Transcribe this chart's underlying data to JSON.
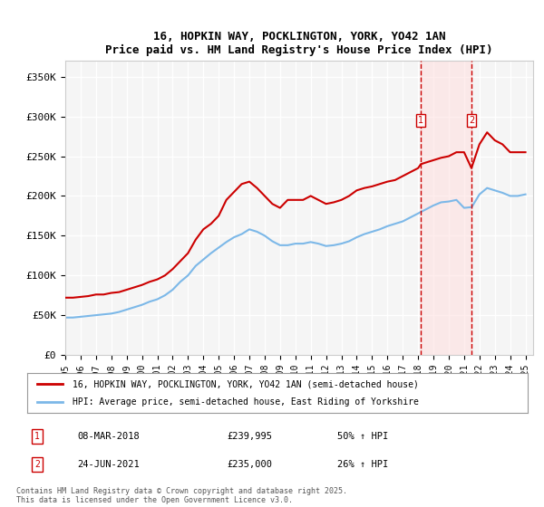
{
  "title": "16, HOPKIN WAY, POCKLINGTON, YORK, YO42 1AN",
  "subtitle": "Price paid vs. HM Land Registry's House Price Index (HPI)",
  "ylabel_ticks": [
    "£0",
    "£50K",
    "£100K",
    "£150K",
    "£200K",
    "£250K",
    "£300K",
    "£350K"
  ],
  "ytick_values": [
    0,
    50000,
    100000,
    150000,
    200000,
    250000,
    300000,
    350000
  ],
  "ylim": [
    0,
    370000
  ],
  "xlim_start": 1995.0,
  "xlim_end": 2025.5,
  "background_color": "#ffffff",
  "plot_bg_color": "#f5f5f5",
  "grid_color": "#ffffff",
  "legend_entries": [
    "16, HOPKIN WAY, POCKLINGTON, YORK, YO42 1AN (semi-detached house)",
    "HPI: Average price, semi-detached house, East Riding of Yorkshire"
  ],
  "legend_colors": [
    "#cc0000",
    "#7cb8e8"
  ],
  "transactions": [
    {
      "num": 1,
      "date": "08-MAR-2018",
      "price": "£239,995",
      "change": "50% ↑ HPI",
      "year": 2018.18
    },
    {
      "num": 2,
      "date": "24-JUN-2021",
      "price": "£235,000",
      "change": "26% ↑ HPI",
      "year": 2021.48
    }
  ],
  "vline_color": "#cc0000",
  "vline_shade_color": "#ffdddd",
  "footnote": "Contains HM Land Registry data © Crown copyright and database right 2025.\nThis data is licensed under the Open Government Licence v3.0.",
  "red_line_data": {
    "x": [
      1995.0,
      1995.5,
      1996.0,
      1996.5,
      1997.0,
      1997.5,
      1998.0,
      1998.5,
      1999.0,
      1999.5,
      2000.0,
      2000.5,
      2001.0,
      2001.5,
      2002.0,
      2002.5,
      2003.0,
      2003.5,
      2004.0,
      2004.5,
      2005.0,
      2005.5,
      2006.0,
      2006.5,
      2007.0,
      2007.5,
      2008.0,
      2008.5,
      2009.0,
      2009.5,
      2010.0,
      2010.5,
      2011.0,
      2011.5,
      2012.0,
      2012.5,
      2013.0,
      2013.5,
      2014.0,
      2014.5,
      2015.0,
      2015.5,
      2016.0,
      2016.5,
      2017.0,
      2017.5,
      2018.0,
      2018.18,
      2018.5,
      2019.0,
      2019.5,
      2020.0,
      2020.5,
      2021.0,
      2021.48,
      2022.0,
      2022.5,
      2023.0,
      2023.5,
      2024.0,
      2024.5,
      2025.0
    ],
    "y": [
      72000,
      72000,
      73000,
      74000,
      76000,
      76000,
      78000,
      79000,
      82000,
      85000,
      88000,
      92000,
      95000,
      100000,
      108000,
      118000,
      128000,
      145000,
      158000,
      165000,
      175000,
      195000,
      205000,
      215000,
      218000,
      210000,
      200000,
      190000,
      185000,
      195000,
      195000,
      195000,
      200000,
      195000,
      190000,
      192000,
      195000,
      200000,
      207000,
      210000,
      212000,
      215000,
      218000,
      220000,
      225000,
      230000,
      235000,
      239995,
      242000,
      245000,
      248000,
      250000,
      255000,
      255000,
      235000,
      265000,
      280000,
      270000,
      265000,
      255000,
      255000,
      255000
    ]
  },
  "blue_line_data": {
    "x": [
      1995.0,
      1995.5,
      1996.0,
      1996.5,
      1997.0,
      1997.5,
      1998.0,
      1998.5,
      1999.0,
      1999.5,
      2000.0,
      2000.5,
      2001.0,
      2001.5,
      2002.0,
      2002.5,
      2003.0,
      2003.5,
      2004.0,
      2004.5,
      2005.0,
      2005.5,
      2006.0,
      2006.5,
      2007.0,
      2007.5,
      2008.0,
      2008.5,
      2009.0,
      2009.5,
      2010.0,
      2010.5,
      2011.0,
      2011.5,
      2012.0,
      2012.5,
      2013.0,
      2013.5,
      2014.0,
      2014.5,
      2015.0,
      2015.5,
      2016.0,
      2016.5,
      2017.0,
      2017.5,
      2018.0,
      2018.5,
      2019.0,
      2019.5,
      2020.0,
      2020.5,
      2021.0,
      2021.5,
      2022.0,
      2022.5,
      2023.0,
      2023.5,
      2024.0,
      2024.5,
      2025.0
    ],
    "y": [
      47000,
      47000,
      48000,
      49000,
      50000,
      51000,
      52000,
      54000,
      57000,
      60000,
      63000,
      67000,
      70000,
      75000,
      82000,
      92000,
      100000,
      112000,
      120000,
      128000,
      135000,
      142000,
      148000,
      152000,
      158000,
      155000,
      150000,
      143000,
      138000,
      138000,
      140000,
      140000,
      142000,
      140000,
      137000,
      138000,
      140000,
      143000,
      148000,
      152000,
      155000,
      158000,
      162000,
      165000,
      168000,
      173000,
      178000,
      183000,
      188000,
      192000,
      193000,
      195000,
      185000,
      186000,
      202000,
      210000,
      207000,
      204000,
      200000,
      200000,
      202000
    ]
  }
}
